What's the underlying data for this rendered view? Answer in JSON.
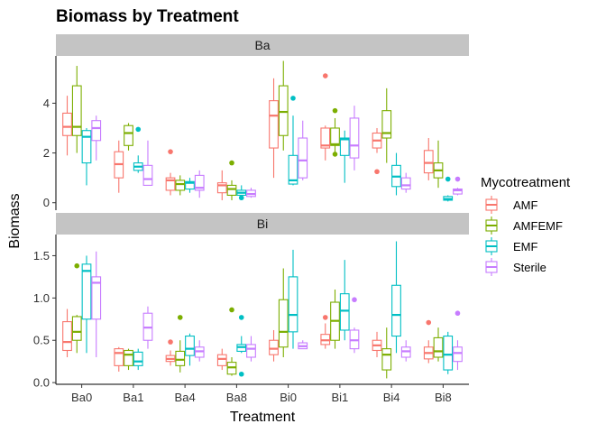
{
  "chart_data": {
    "type": "boxplot",
    "title": "Biomass by Treatment",
    "xlabel": "Treatment",
    "ylabel": "Biomass",
    "categories": [
      "Ba0",
      "Ba1",
      "Ba4",
      "Ba8",
      "Bi0",
      "Bi1",
      "Bi4",
      "Bi8"
    ],
    "legend": {
      "title": "Mycotreatment",
      "position": "right",
      "items": [
        {
          "name": "AMF",
          "color": "#F8766D"
        },
        {
          "name": "AMFEMF",
          "color": "#7CAE00"
        },
        {
          "name": "EMF",
          "color": "#00BFC4"
        },
        {
          "name": "Sterile",
          "color": "#C77CFF"
        }
      ]
    },
    "facets": [
      {
        "label": "Ba",
        "ylim": [
          -0.3,
          5.9
        ],
        "yticks": [
          0,
          2,
          4
        ],
        "boxes": {
          "AMF": [
            [
              1.9,
              2.7,
              3.05,
              3.6,
              4.3,
              []
            ],
            [
              0.4,
              1.0,
              1.55,
              2.05,
              2.5,
              []
            ],
            [
              0.3,
              0.5,
              0.9,
              1.0,
              1.2,
              [
                2.05
              ]
            ],
            [
              0.1,
              0.4,
              0.7,
              0.8,
              1.3,
              []
            ],
            [
              1.0,
              2.2,
              3.5,
              4.1,
              5.0,
              []
            ],
            [
              1.7,
              2.2,
              2.3,
              3.0,
              3.1,
              [
                5.1
              ]
            ],
            [
              2.0,
              2.2,
              2.5,
              2.8,
              3.0,
              [
                1.25
              ]
            ],
            [
              0.9,
              1.2,
              1.6,
              2.1,
              2.6,
              []
            ]
          ],
          "AMFEMF": [
            [
              2.0,
              2.7,
              3.05,
              4.7,
              5.5,
              []
            ],
            [
              2.1,
              2.3,
              2.8,
              3.1,
              3.2,
              []
            ],
            [
              0.3,
              0.5,
              0.75,
              0.9,
              1.1,
              []
            ],
            [
              0.1,
              0.3,
              0.55,
              0.7,
              0.9,
              [
                1.6
              ]
            ],
            [
              2.1,
              2.7,
              3.65,
              4.7,
              5.7,
              []
            ],
            [
              1.9,
              2.3,
              2.35,
              3.0,
              3.4,
              [
                3.7,
                1.95
              ]
            ],
            [
              1.6,
              2.6,
              2.8,
              3.7,
              4.6,
              []
            ],
            [
              0.6,
              1.0,
              1.3,
              1.6,
              2.5,
              []
            ]
          ],
          "EMF": [
            [
              0.7,
              1.6,
              2.65,
              2.9,
              3.0,
              []
            ],
            [
              1.2,
              1.3,
              1.45,
              1.6,
              1.9,
              [
                2.95
              ]
            ],
            [
              0.4,
              0.55,
              0.8,
              0.85,
              1.0,
              []
            ],
            [
              0.15,
              0.3,
              0.4,
              0.5,
              0.7,
              [
                0.2
              ]
            ],
            [
              0.7,
              0.75,
              0.9,
              1.9,
              3.5,
              [
                4.2
              ]
            ],
            [
              0.8,
              1.9,
              2.55,
              2.6,
              2.9,
              []
            ],
            [
              0.3,
              0.65,
              1.05,
              1.5,
              2.0,
              []
            ],
            [
              0.05,
              0.1,
              0.15,
              0.25,
              0.3,
              [
                0.95
              ]
            ]
          ],
          "Sterile": [
            [
              1.7,
              2.5,
              3.0,
              3.3,
              3.5,
              []
            ],
            [
              0.7,
              0.7,
              0.95,
              1.5,
              2.5,
              []
            ],
            [
              0.2,
              0.5,
              0.6,
              1.1,
              1.3,
              []
            ],
            [
              0.2,
              0.25,
              0.35,
              0.5,
              0.6,
              []
            ],
            [
              0.9,
              1.0,
              1.7,
              2.6,
              3.3,
              []
            ],
            [
              1.3,
              1.8,
              2.3,
              3.4,
              3.9,
              []
            ],
            [
              0.4,
              0.55,
              0.7,
              1.0,
              1.2,
              []
            ],
            [
              0.3,
              0.35,
              0.5,
              0.55,
              0.6,
              [
                0.95
              ]
            ]
          ]
        }
      },
      {
        "label": "Bi",
        "ylim": [
          -0.02,
          1.75
        ],
        "yticks": [
          0.0,
          0.5,
          1.0,
          1.5
        ],
        "boxes": {
          "AMF": [
            [
              0.3,
              0.38,
              0.48,
              0.72,
              0.87,
              []
            ],
            [
              0.13,
              0.2,
              0.35,
              0.4,
              0.42,
              []
            ],
            [
              0.2,
              0.25,
              0.28,
              0.32,
              0.38,
              [
                0.48
              ]
            ],
            [
              0.15,
              0.2,
              0.28,
              0.33,
              0.4,
              []
            ],
            [
              0.25,
              0.33,
              0.4,
              0.5,
              0.62,
              []
            ],
            [
              0.4,
              0.45,
              0.5,
              0.57,
              0.7,
              [
                0.77
              ]
            ],
            [
              0.3,
              0.38,
              0.44,
              0.5,
              0.6,
              []
            ],
            [
              0.23,
              0.28,
              0.35,
              0.42,
              0.5,
              [
                0.71
              ]
            ]
          ],
          "AMFEMF": [
            [
              0.35,
              0.5,
              0.6,
              0.78,
              0.8,
              [
                1.38
              ]
            ],
            [
              0.15,
              0.2,
              0.33,
              0.38,
              0.4,
              []
            ],
            [
              0.12,
              0.2,
              0.27,
              0.37,
              0.5,
              [
                0.77
              ]
            ],
            [
              0.08,
              0.1,
              0.18,
              0.24,
              0.3,
              [
                0.86
              ]
            ],
            [
              0.3,
              0.42,
              0.6,
              0.98,
              1.35,
              []
            ],
            [
              0.4,
              0.5,
              0.73,
              0.95,
              1.1,
              []
            ],
            [
              0.05,
              0.15,
              0.33,
              0.4,
              0.65,
              []
            ],
            [
              0.25,
              0.3,
              0.37,
              0.53,
              0.65,
              []
            ]
          ],
          "EMF": [
            [
              0.35,
              0.75,
              1.32,
              1.4,
              1.5,
              []
            ],
            [
              0.15,
              0.2,
              0.25,
              0.36,
              0.4,
              []
            ],
            [
              0.2,
              0.32,
              0.4,
              0.55,
              0.58,
              []
            ],
            [
              0.35,
              0.37,
              0.42,
              0.45,
              0.55,
              [
                0.77,
                0.1
              ]
            ],
            [
              0.4,
              0.6,
              0.8,
              1.25,
              1.57,
              []
            ],
            [
              0.5,
              0.62,
              0.85,
              1.05,
              1.45,
              []
            ],
            [
              0.35,
              0.55,
              0.8,
              1.15,
              1.67,
              []
            ],
            [
              0.1,
              0.15,
              0.33,
              0.55,
              0.6,
              []
            ]
          ],
          "Sterile": [
            [
              0.3,
              0.75,
              1.18,
              1.25,
              1.55,
              []
            ],
            [
              0.4,
              0.5,
              0.65,
              0.82,
              0.9,
              []
            ],
            [
              0.25,
              0.3,
              0.37,
              0.42,
              0.5,
              []
            ],
            [
              0.25,
              0.3,
              0.4,
              0.45,
              0.55,
              []
            ],
            [
              0.4,
              0.4,
              0.43,
              0.47,
              0.5,
              []
            ],
            [
              0.35,
              0.4,
              0.5,
              0.62,
              0.65,
              [
                0.98
              ]
            ],
            [
              0.25,
              0.3,
              0.37,
              0.42,
              0.5,
              []
            ],
            [
              0.15,
              0.25,
              0.35,
              0.42,
              0.5,
              [
                0.82
              ]
            ]
          ]
        }
      }
    ]
  }
}
